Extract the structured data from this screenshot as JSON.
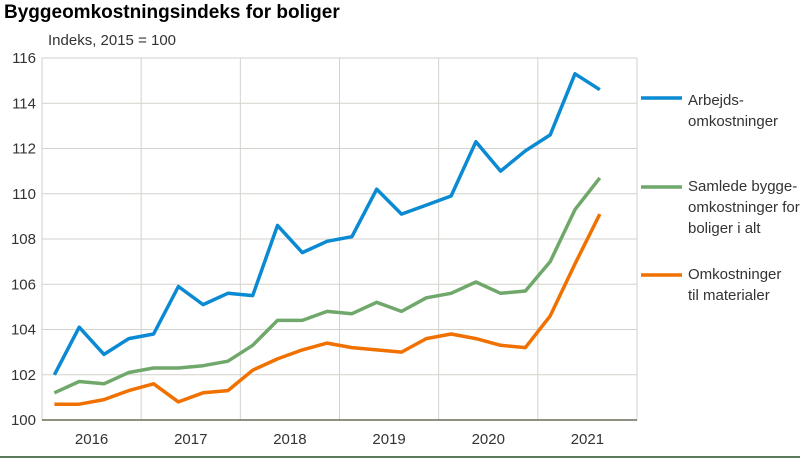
{
  "chart_data": {
    "type": "line",
    "title": "Byggeomkostningsindeks for boliger",
    "ylabel": "Indeks, 2015 = 100",
    "xlabel": "",
    "ylim": [
      100,
      116
    ],
    "yticks": [
      "100",
      "102",
      "104",
      "106",
      "108",
      "110",
      "112",
      "114",
      "116"
    ],
    "xticks": [
      "2016",
      "2017",
      "2018",
      "2019",
      "2020",
      "2021"
    ],
    "grid": true,
    "legend_position": "right",
    "x": [
      "2016K1",
      "2016K2",
      "2016K3",
      "2016K4",
      "2017K1",
      "2017K2",
      "2017K3",
      "2017K4",
      "2018K1",
      "2018K2",
      "2018K3",
      "2018K4",
      "2019K1",
      "2019K2",
      "2019K3",
      "2019K4",
      "2020K1",
      "2020K2",
      "2020K3",
      "2020K4",
      "2021K1",
      "2021K2",
      "2021K3"
    ],
    "series": [
      {
        "name": "Arbejds-omkostninger",
        "legend_lines": [
          "Arbejds-",
          "omkostninger"
        ],
        "color": "#0a8ad2",
        "values": [
          102.0,
          104.1,
          102.9,
          103.6,
          103.8,
          105.9,
          105.1,
          105.6,
          105.5,
          108.6,
          107.4,
          107.9,
          108.1,
          110.2,
          109.1,
          109.5,
          109.9,
          112.3,
          111.0,
          111.9,
          112.6,
          115.3,
          114.6
        ]
      },
      {
        "name": "Samlede byggeomkostninger for boliger i alt",
        "legend_lines": [
          "Samlede bygge-",
          "omkostninger for",
          "boliger i alt"
        ],
        "color": "#6fa86a",
        "values": [
          101.2,
          101.7,
          101.6,
          102.1,
          102.3,
          102.3,
          102.4,
          102.6,
          103.3,
          104.4,
          104.4,
          104.8,
          104.7,
          105.2,
          104.8,
          105.4,
          105.6,
          106.1,
          105.6,
          105.7,
          107.0,
          109.3,
          110.7
        ]
      },
      {
        "name": "Omkostninger til materialer",
        "legend_lines": [
          "Omkostninger",
          "til materialer"
        ],
        "color": "#f07100",
        "values": [
          100.7,
          100.7,
          100.9,
          101.3,
          101.6,
          100.8,
          101.2,
          101.3,
          102.2,
          102.7,
          103.1,
          103.4,
          103.2,
          103.1,
          103.0,
          103.6,
          103.8,
          103.6,
          103.3,
          103.2,
          104.6,
          106.9,
          109.1
        ]
      }
    ]
  }
}
